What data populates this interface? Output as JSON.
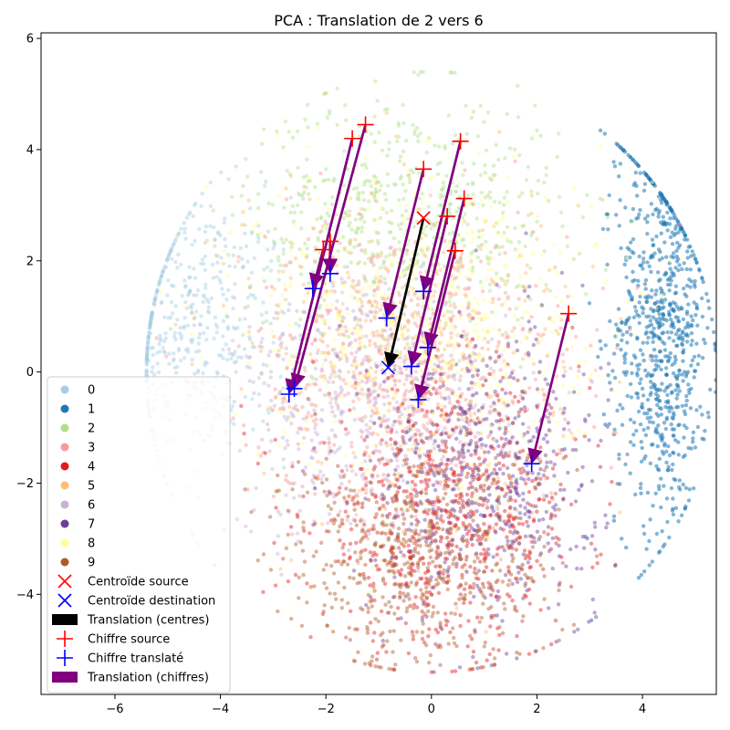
{
  "chart_data": {
    "type": "scatter",
    "title": "PCA : Translation de 2 vers 6",
    "xlabel": "",
    "ylabel": "",
    "xlim": [
      -7.4,
      5.4
    ],
    "ylim": [
      -5.8,
      6.1
    ],
    "xticks": [
      -6,
      -4,
      -2,
      0,
      2,
      4
    ],
    "yticks": [
      -4,
      -2,
      0,
      2,
      4,
      6
    ],
    "xtick_labels": [
      "−6",
      "−4",
      "−2",
      "0",
      "2",
      "4"
    ],
    "ytick_labels": [
      "−4",
      "−2",
      "0",
      "2",
      "4",
      "6"
    ],
    "grid": false,
    "legend_position": "lower-left",
    "clusters": [
      {
        "name": "0",
        "color": "#a6cee3",
        "cx": -4.6,
        "cy": 0.8,
        "sx": 1.0,
        "sy": 1.2,
        "n": 500,
        "alpha": 0.45
      },
      {
        "name": "1",
        "color": "#1f78b4",
        "cx": 4.4,
        "cy": 0.8,
        "sx": 0.45,
        "sy": 1.8,
        "n": 800,
        "alpha": 0.55
      },
      {
        "name": "2",
        "color": "#b2df8a",
        "cx": -0.5,
        "cy": 2.8,
        "sx": 1.5,
        "sy": 1.1,
        "n": 600,
        "alpha": 0.45
      },
      {
        "name": "3",
        "color": "#fb9a99",
        "cx": -0.4,
        "cy": 0.0,
        "sx": 1.5,
        "sy": 1.3,
        "n": 600,
        "alpha": 0.45
      },
      {
        "name": "4",
        "color": "#e31a1c",
        "cx": 0.3,
        "cy": -2.6,
        "sx": 1.3,
        "sy": 1.2,
        "n": 700,
        "alpha": 0.45
      },
      {
        "name": "5",
        "color": "#fdbf6f",
        "cx": -0.6,
        "cy": 0.6,
        "sx": 1.6,
        "sy": 1.5,
        "n": 500,
        "alpha": 0.45
      },
      {
        "name": "6",
        "color": "#cab2d6",
        "cx": -1.2,
        "cy": -0.6,
        "sx": 1.3,
        "sy": 1.2,
        "n": 500,
        "alpha": 0.45
      },
      {
        "name": "7",
        "color": "#6a3d9a",
        "cx": 1.0,
        "cy": -1.8,
        "sx": 1.1,
        "sy": 1.3,
        "n": 600,
        "alpha": 0.45
      },
      {
        "name": "8",
        "color": "#ffff99",
        "cx": 0.0,
        "cy": 1.0,
        "sx": 1.6,
        "sy": 1.4,
        "n": 500,
        "alpha": 0.5
      },
      {
        "name": "9",
        "color": "#b15928",
        "cx": -0.3,
        "cy": -3.3,
        "sx": 1.3,
        "sy": 1.0,
        "n": 600,
        "alpha": 0.45
      }
    ],
    "centroid_source": {
      "name": "Centroïde source",
      "x": -0.15,
      "y": 2.77,
      "color": "#ff0000"
    },
    "centroid_dest": {
      "name": "Centroïde destination",
      "x": -0.82,
      "y": 0.08,
      "color": "#0000ff"
    },
    "centroid_arrow": {
      "name": "Translation (centres)",
      "color": "#000000"
    },
    "digit_translation": {
      "name": "Translation (chiffres)",
      "color": "#800080"
    },
    "digits_source_label": "Chiffre source",
    "digits_translated_label": "Chiffre translaté",
    "digits_source_color": "#ff0000",
    "digits_translated_color": "#0000ff",
    "digit_pairs": [
      {
        "sx": -1.25,
        "sy": 4.45,
        "tx": -2.6,
        "ty": -0.3
      },
      {
        "sx": -1.5,
        "sy": 4.2,
        "tx": -2.7,
        "ty": -0.4
      },
      {
        "sx": 0.55,
        "sy": 4.15,
        "tx": -0.15,
        "ty": 1.45
      },
      {
        "sx": -0.15,
        "sy": 3.65,
        "tx": -0.85,
        "ty": 0.97
      },
      {
        "sx": 0.62,
        "sy": 3.12,
        "tx": -0.07,
        "ty": 0.44
      },
      {
        "sx": 0.3,
        "sy": 2.8,
        "tx": -0.38,
        "ty": 0.1
      },
      {
        "sx": -1.92,
        "sy": 2.35,
        "tx": -1.92,
        "ty": 1.77
      },
      {
        "sx": -2.05,
        "sy": 2.2,
        "tx": -2.25,
        "ty": 1.5
      },
      {
        "sx": 0.45,
        "sy": 2.18,
        "tx": -0.25,
        "ty": -0.5
      },
      {
        "sx": 2.6,
        "sy": 1.05,
        "tx": 1.9,
        "ty": -1.65
      }
    ]
  },
  "legend": {
    "items": [
      {
        "label": "0",
        "kind": "dot",
        "color": "#a6cee3"
      },
      {
        "label": "1",
        "kind": "dot",
        "color": "#1f78b4"
      },
      {
        "label": "2",
        "kind": "dot",
        "color": "#b2df8a"
      },
      {
        "label": "3",
        "kind": "dot",
        "color": "#fb9a99"
      },
      {
        "label": "4",
        "kind": "dot",
        "color": "#e31a1c"
      },
      {
        "label": "5",
        "kind": "dot",
        "color": "#fdbf6f"
      },
      {
        "label": "6",
        "kind": "dot",
        "color": "#cab2d6"
      },
      {
        "label": "7",
        "kind": "dot",
        "color": "#6a3d9a"
      },
      {
        "label": "8",
        "kind": "dot",
        "color": "#ffff99"
      },
      {
        "label": "9",
        "kind": "dot",
        "color": "#b15928"
      },
      {
        "label": "Centroïde source",
        "kind": "x",
        "color": "#ff0000"
      },
      {
        "label": "Centroïde destination",
        "kind": "x",
        "color": "#0000ff"
      },
      {
        "label": "Translation (centres)",
        "kind": "patch",
        "color": "#000000"
      },
      {
        "label": "Chiffre source",
        "kind": "plus",
        "color": "#ff0000"
      },
      {
        "label": "Chiffre translaté",
        "kind": "plus",
        "color": "#0000ff"
      },
      {
        "label": "Translation (chiffres)",
        "kind": "patch",
        "color": "#800080"
      }
    ]
  }
}
